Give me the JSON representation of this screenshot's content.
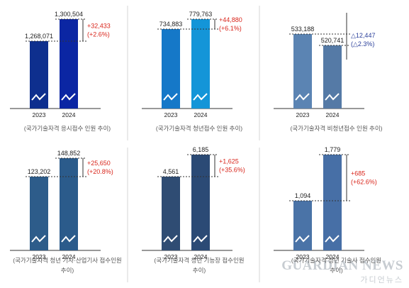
{
  "chart_data": [
    {
      "type": "bar",
      "categories": [
        "2023",
        "2024"
      ],
      "values": [
        1268071,
        1300504
      ],
      "value_labels": [
        "1,268,071",
        "1,300,504"
      ],
      "bar_colors": [
        "#0e2f8e",
        "#0b26a3"
      ],
      "change": {
        "abs": "+32,433",
        "pct": "(+2.6%)",
        "color": "#d9261c"
      },
      "caption": "(국가기술자격 응시접수 인원 추이)"
    },
    {
      "type": "bar",
      "categories": [
        "2023",
        "2024"
      ],
      "values": [
        734883,
        779763
      ],
      "value_labels": [
        "734,883",
        "779,763"
      ],
      "bar_colors": [
        "#1578c8",
        "#1495d8"
      ],
      "change": {
        "abs": "+44,880",
        "pct": "(+6.1%)",
        "color": "#d9261c"
      },
      "caption": "(국가기술자격 청년접수 인원 추이)"
    },
    {
      "type": "bar",
      "categories": [
        "2023",
        "2024"
      ],
      "values": [
        533188,
        520741
      ],
      "value_labels": [
        "533,188",
        "520,741"
      ],
      "bar_colors": [
        "#5b84b3",
        "#557aa6"
      ],
      "change": {
        "abs": "△12,447",
        "pct": "(△2.3%)",
        "color": "#2a3f9a"
      },
      "caption": "(국가기술자격 비청년접수 인원 추이)"
    },
    {
      "type": "bar",
      "categories": [
        "2023",
        "2024"
      ],
      "values": [
        123202,
        148852
      ],
      "value_labels": [
        "123,202",
        "148,852"
      ],
      "bar_colors": [
        "#2d5c8a",
        "#2b5b8b"
      ],
      "change": {
        "abs": "+25,650",
        "pct": "(+20.8%)",
        "color": "#d9261c"
      },
      "caption_lines": [
        "(국가기술자격 청년 기사·산업기사 접수인원",
        "추이)"
      ]
    },
    {
      "type": "bar",
      "categories": [
        "2023",
        "2024"
      ],
      "values": [
        4561,
        6185
      ],
      "value_labels": [
        "4,561",
        "6,185"
      ],
      "bar_colors": [
        "#2f4c73",
        "#2b4a75"
      ],
      "change": {
        "abs": "+1,625",
        "pct": "(+35.6%)",
        "color": "#d9261c"
      },
      "caption_lines": [
        "(국가기술자격 청년 기능장 접수인원",
        "추이)"
      ]
    },
    {
      "type": "bar",
      "categories": [
        "2023",
        "2024"
      ],
      "values": [
        1094,
        1779
      ],
      "value_labels": [
        "1,094",
        "1,779"
      ],
      "bar_colors": [
        "#4a73a7",
        "#476fa6"
      ],
      "change": {
        "abs": "+685",
        "pct": "(+62.6%)",
        "color": "#d9261c"
      },
      "caption_lines": [
        "(국가기술자격 청년 기술사 접수인원",
        "추이)"
      ]
    }
  ],
  "watermark": {
    "en": "GUARDIAN NEWS",
    "ko": "가디언뉴스"
  }
}
